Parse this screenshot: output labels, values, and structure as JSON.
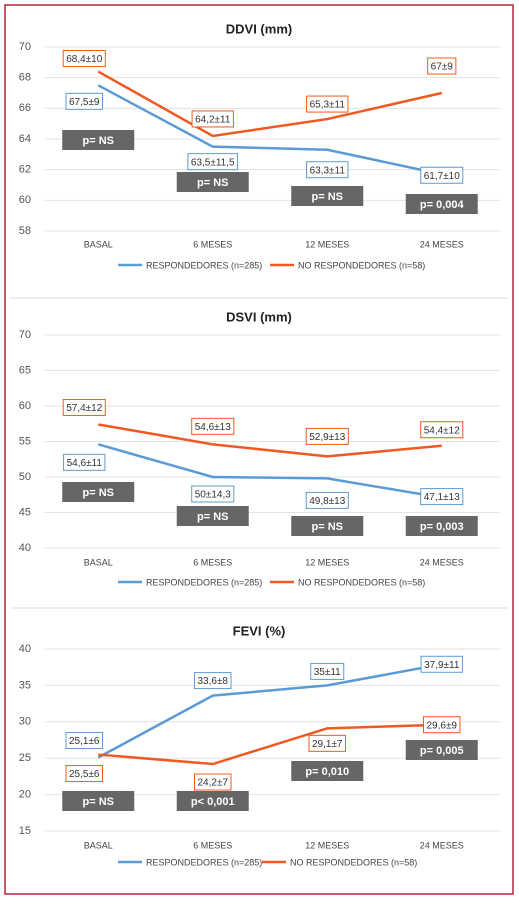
{
  "chart_data": [
    {
      "type": "line",
      "title": "DDVI (mm)",
      "categories": [
        "BASAL",
        "6 MESES",
        "12 MESES",
        "24 MESES"
      ],
      "series": [
        {
          "name": "RESPONDEDORES (n=285)",
          "color": "#5b9bd5",
          "values": [
            67.5,
            63.5,
            63.3,
            61.7
          ],
          "value_labels": [
            "67,5±9",
            "63,5±11,5",
            "63,3±11",
            "61,7±10"
          ]
        },
        {
          "name": "NO RESPONDEDORES (n=58)",
          "color": "#f05a22",
          "values": [
            68.4,
            64.2,
            65.3,
            67
          ],
          "value_labels": [
            "68,4±10",
            "64,2±11",
            "65,3±11",
            "67±9"
          ]
        }
      ],
      "p_values": [
        "p= NS",
        "p= NS",
        "p= NS",
        "p= 0,004"
      ],
      "ylim": [
        58,
        70
      ],
      "yticks": [
        58,
        60,
        62,
        64,
        66,
        68,
        70
      ],
      "grid": true,
      "legend": "bottom"
    },
    {
      "type": "line",
      "title": "DSVI (mm)",
      "categories": [
        "BASAL",
        "6 MESES",
        "12 MESES",
        "24 MESES"
      ],
      "series": [
        {
          "name": "RESPONDEDORES (n=285)",
          "color": "#5b9bd5",
          "values": [
            54.6,
            50,
            49.8,
            47.1
          ],
          "value_labels": [
            "54,6±11",
            "50±14,3",
            "49,8±13",
            "47,1±13"
          ]
        },
        {
          "name": "NO RESPONDEDORES (n=58)",
          "color": "#f05a22",
          "values": [
            57.4,
            54.6,
            52.9,
            54.4
          ],
          "value_labels": [
            "57,4±12",
            "54,6±13",
            "52,9±13",
            "54,4±12"
          ]
        }
      ],
      "p_values": [
        "p= NS",
        "p= NS",
        "p= NS",
        "p= 0,003"
      ],
      "ylim": [
        40,
        70
      ],
      "yticks": [
        40,
        45,
        50,
        55,
        60,
        65,
        70
      ],
      "grid": true,
      "legend": "bottom"
    },
    {
      "type": "line",
      "title": "FEVI (%)",
      "categories": [
        "BASAL",
        "6 MESES",
        "12 MESES",
        "24 MESES"
      ],
      "series": [
        {
          "name": "RESPONDEDORES (n=285)",
          "color": "#5b9bd5",
          "values": [
            25.1,
            33.6,
            35,
            37.9
          ],
          "value_labels": [
            "25,1±6",
            "33,6±8",
            "35±11",
            "37,9±11"
          ]
        },
        {
          "name": "NO RESPONDEDORES (n=58)",
          "color": "#f05a22",
          "values": [
            25.5,
            24.2,
            29.1,
            29.6
          ],
          "value_labels": [
            "25,5±6",
            "24,2±7",
            "29,1±7",
            "29,6±9"
          ]
        }
      ],
      "p_values": [
        "p= NS",
        "p< 0,001",
        "p= 0,010",
        "p= 0,005"
      ],
      "ylim": [
        15,
        40
      ],
      "yticks": [
        15,
        20,
        25,
        30,
        35,
        40
      ],
      "grid": true,
      "legend": "bottom"
    }
  ]
}
